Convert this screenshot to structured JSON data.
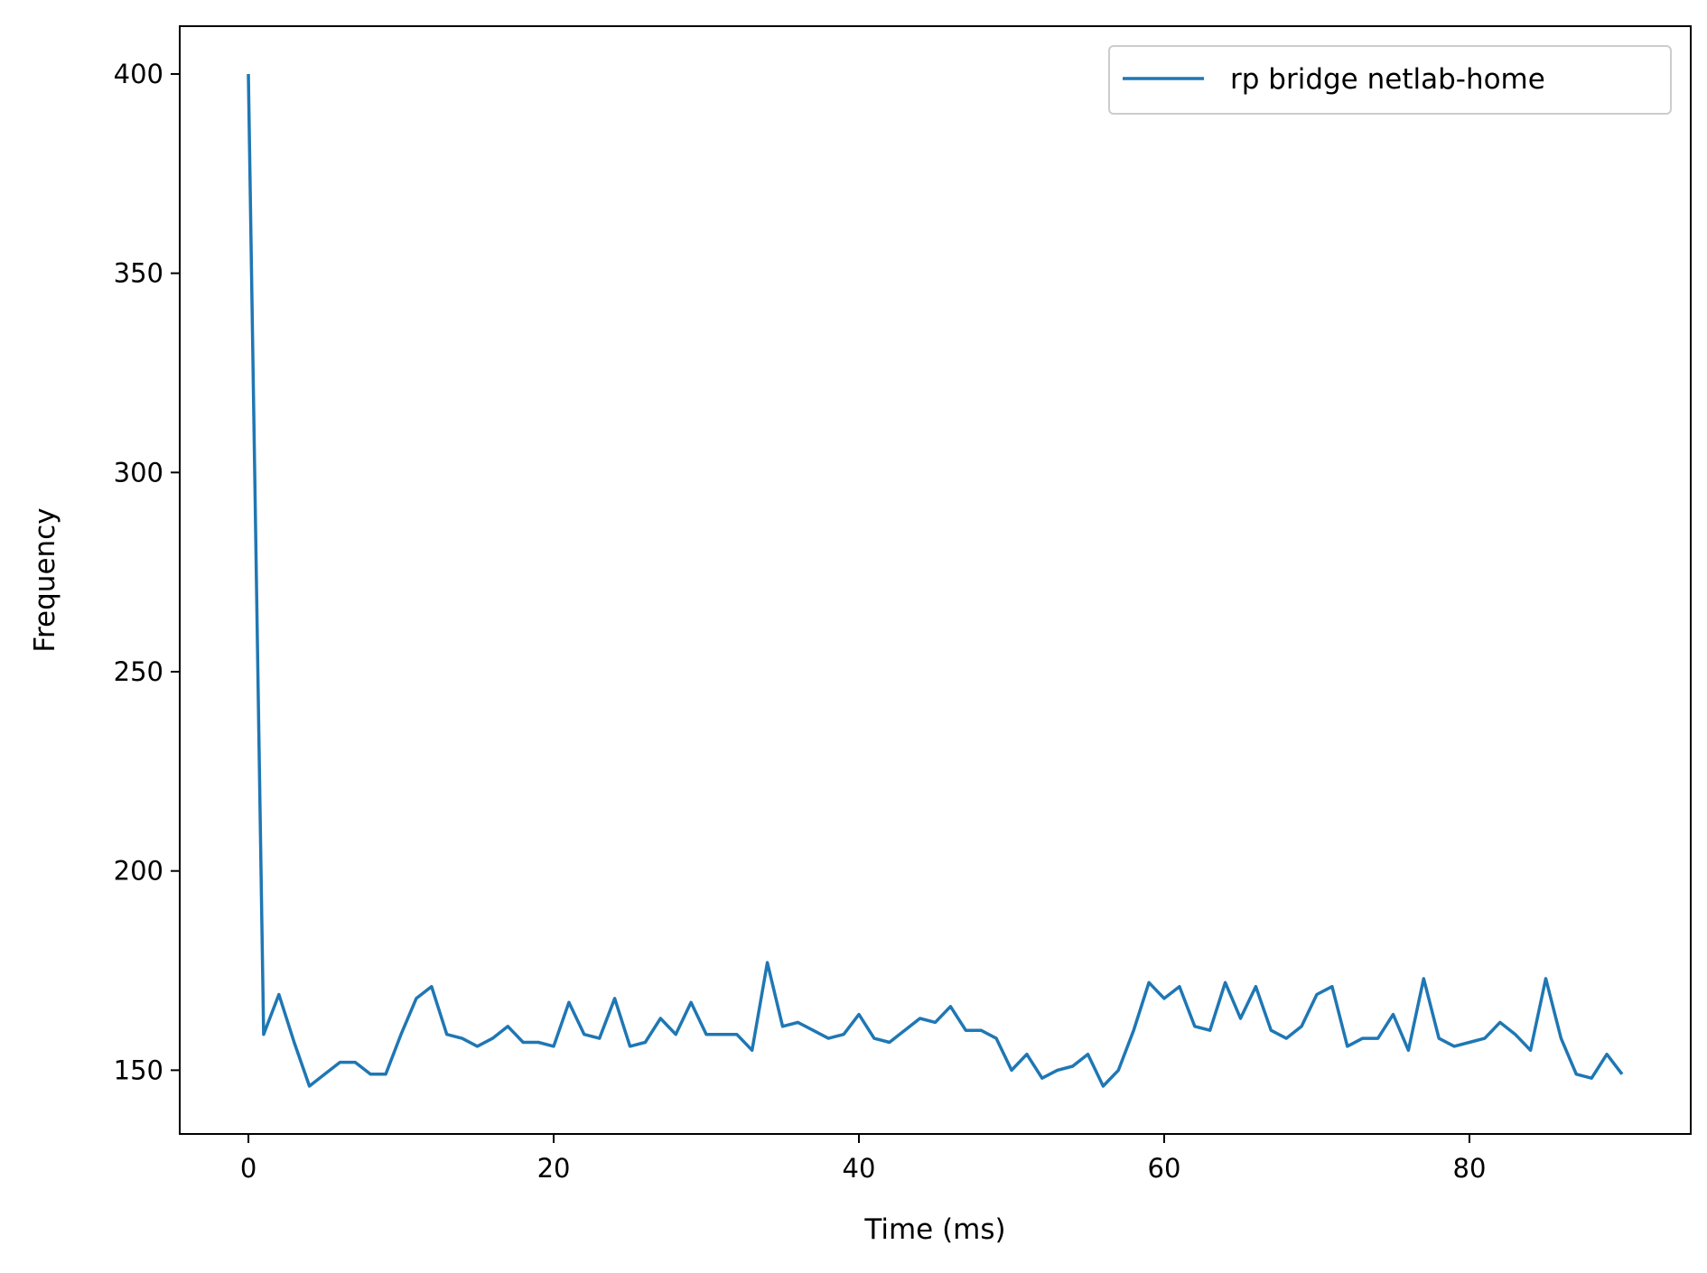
{
  "chart_data": {
    "type": "line",
    "xlabel": "Time (ms)",
    "ylabel": "Frequency",
    "xlim": [
      -4.5,
      94.5
    ],
    "ylim": [
      134,
      412
    ],
    "xticks": [
      0,
      20,
      40,
      60,
      80
    ],
    "yticks": [
      150,
      200,
      250,
      300,
      350,
      400
    ],
    "grid": false,
    "legend_position": "upper right",
    "series": [
      {
        "name": "rp bridge netlab-home",
        "color": "#1f77b4",
        "x": [
          0,
          1,
          2,
          3,
          4,
          5,
          6,
          7,
          8,
          9,
          10,
          11,
          12,
          13,
          14,
          15,
          16,
          17,
          18,
          19,
          20,
          21,
          22,
          23,
          24,
          25,
          26,
          27,
          28,
          29,
          30,
          31,
          32,
          33,
          34,
          35,
          36,
          37,
          38,
          39,
          40,
          41,
          42,
          43,
          44,
          45,
          46,
          47,
          48,
          49,
          50,
          51,
          52,
          53,
          54,
          55,
          56,
          57,
          58,
          59,
          60,
          61,
          62,
          63,
          64,
          65,
          66,
          67,
          68,
          69,
          70,
          71,
          72,
          73,
          74,
          75,
          76,
          77,
          78,
          79,
          80,
          81,
          82,
          83,
          84,
          85,
          86,
          87,
          88,
          89,
          90
        ],
        "y": [
          400,
          159,
          169,
          157,
          146,
          149,
          152,
          152,
          149,
          149,
          159,
          168,
          171,
          159,
          158,
          156,
          158,
          161,
          157,
          157,
          156,
          167,
          159,
          158,
          168,
          156,
          157,
          163,
          159,
          167,
          159,
          159,
          159,
          155,
          177,
          161,
          162,
          160,
          158,
          159,
          164,
          158,
          157,
          160,
          163,
          162,
          166,
          160,
          160,
          158,
          150,
          154,
          148,
          150,
          151,
          154,
          146,
          150,
          160,
          172,
          168,
          171,
          161,
          160,
          172,
          163,
          171,
          160,
          158,
          161,
          169,
          171,
          156,
          158,
          158,
          164,
          155,
          173,
          158,
          156,
          157,
          158,
          162,
          159,
          155,
          173,
          158,
          149,
          148,
          154,
          149
        ]
      }
    ]
  }
}
